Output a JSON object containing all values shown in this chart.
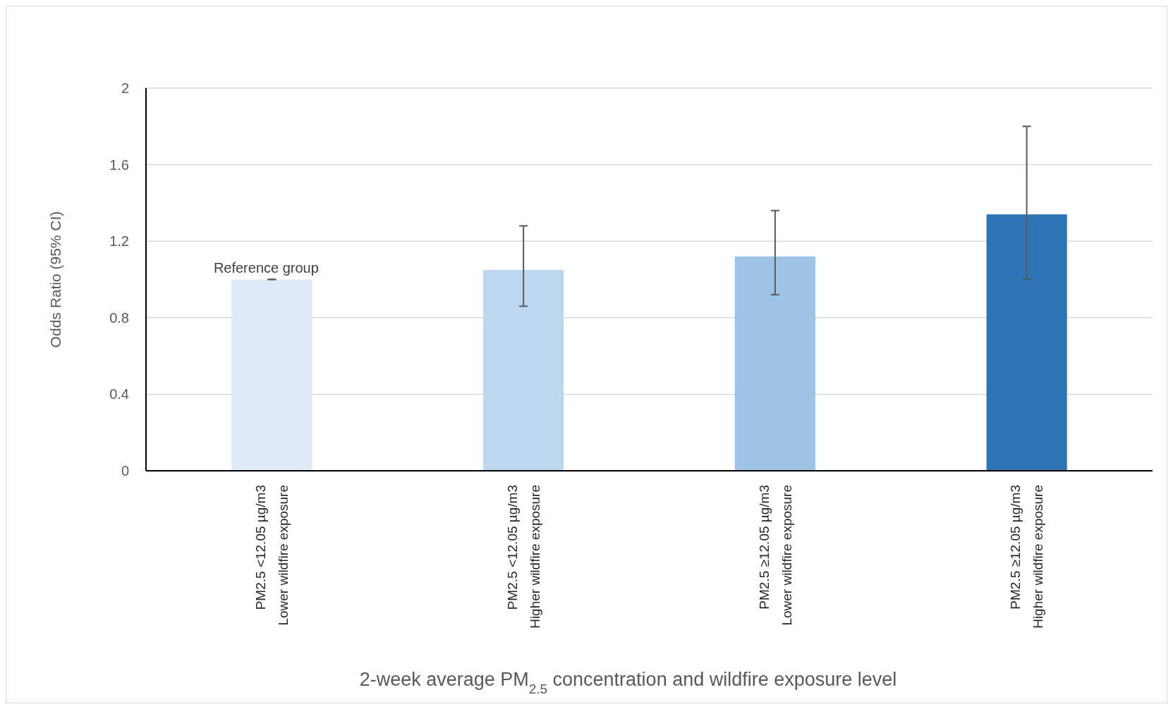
{
  "chart_data": {
    "type": "bar",
    "xlabel": "2-week average PM$_{2.5}$ concentration and wildfire exposure level",
    "ylabel": "Odds Ratio (95% CI)",
    "categories": [
      "PM2.5 <12.05 µg/m3\nLower wildfire exposure",
      "PM2.5 <12.05 µg/m3\nHigher wildfire exposure",
      "PM2.5 ≥12.05 µg/m3\nLower wildfire exposure",
      "PM2.5 ≥12.05 µg/m3\nHigher wildfire exposure"
    ],
    "values": [
      1.0,
      1.05,
      1.12,
      1.34
    ],
    "colors": [
      "#deebf7",
      "#bdd7ee",
      "#9dc3e6",
      "#2e75b6"
    ],
    "errors": [
      [
        1.0,
        1.0
      ],
      [
        0.86,
        1.28
      ],
      [
        0.92,
        1.36
      ],
      [
        1.0,
        1.8
      ]
    ],
    "ylim": [
      0,
      2
    ],
    "yticks": [
      0,
      0.4,
      0.8,
      1.2,
      1.6,
      2
    ],
    "grid": "y",
    "annotations": [
      {
        "text": "Reference group",
        "x": "PM2.5 <12.05 µg/m3\nLower wildfire exposure",
        "y": 1.0
      }
    ]
  }
}
